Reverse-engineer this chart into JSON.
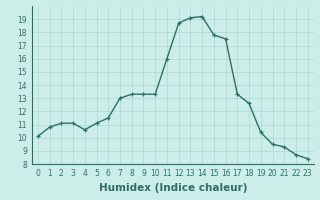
{
  "x": [
    0,
    1,
    2,
    3,
    4,
    5,
    6,
    7,
    8,
    9,
    10,
    11,
    12,
    13,
    14,
    15,
    16,
    17,
    18,
    19,
    20,
    21,
    22,
    23
  ],
  "y": [
    10.1,
    10.8,
    11.1,
    11.1,
    10.6,
    11.1,
    11.5,
    13.0,
    13.3,
    13.3,
    13.3,
    16.0,
    18.7,
    19.1,
    19.2,
    17.8,
    17.5,
    13.3,
    12.6,
    10.4,
    9.5,
    9.3,
    8.7,
    8.4
  ],
  "line_color": "#2e6e6e",
  "marker": "+",
  "marker_size": 3,
  "bg_color": "#cceee8",
  "grid_color": "#aad8d0",
  "xlabel": "Humidex (Indice chaleur)",
  "ylim": [
    8,
    20
  ],
  "xlim": [
    -0.5,
    23.5
  ],
  "yticks": [
    8,
    9,
    10,
    11,
    12,
    13,
    14,
    15,
    16,
    17,
    18,
    19
  ],
  "xticks": [
    0,
    1,
    2,
    3,
    4,
    5,
    6,
    7,
    8,
    9,
    10,
    11,
    12,
    13,
    14,
    15,
    16,
    17,
    18,
    19,
    20,
    21,
    22,
    23
  ],
  "tick_label_fontsize": 5.5,
  "xlabel_fontsize": 7.5,
  "line_width": 1.0
}
